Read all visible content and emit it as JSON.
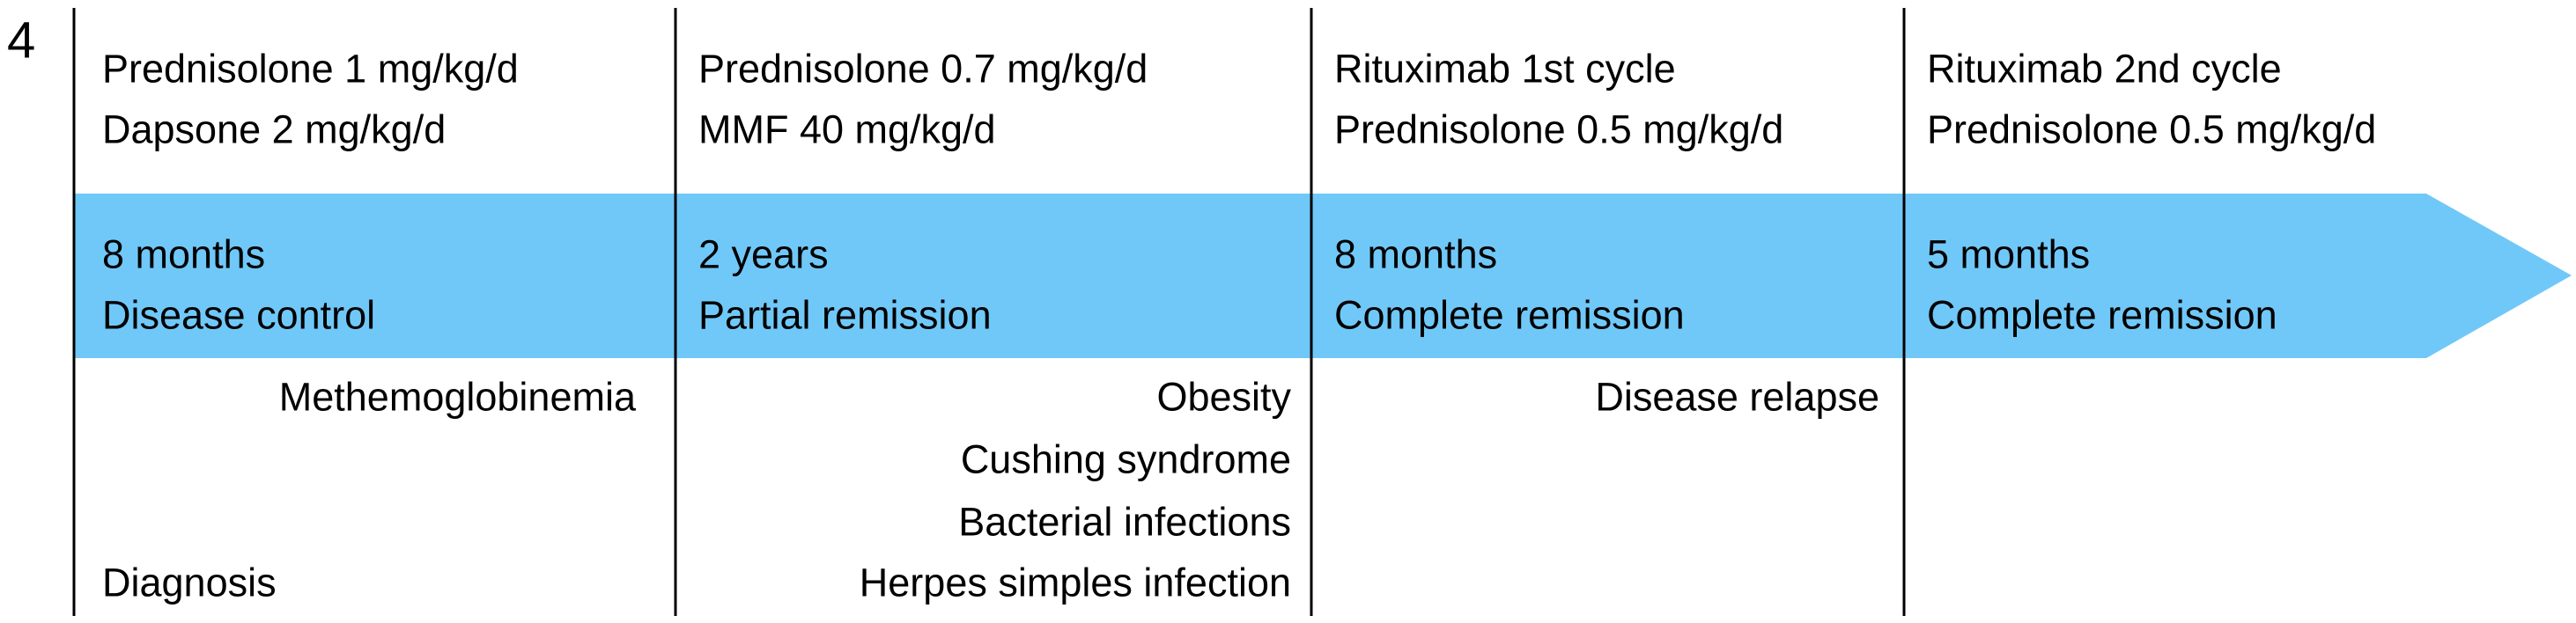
{
  "panel_label": "4",
  "start_label": "Diagnosis",
  "phases": [
    {
      "treatments": [
        "Prednisolone 1 mg/kg/d",
        "Dapsone 2 mg/kg/d"
      ],
      "duration": "8 months",
      "outcome": "Disease control",
      "events": [
        "Methemoglobinemia"
      ]
    },
    {
      "treatments": [
        "Prednisolone 0.7 mg/kg/d",
        "MMF 40 mg/kg/d"
      ],
      "duration": "2 years",
      "outcome": "Partial remission",
      "events": [
        "Obesity",
        "Cushing syndrome",
        "Bacterial infections",
        "Herpes simples infection"
      ]
    },
    {
      "treatments": [
        "Rituximab 1st cycle",
        "Prednisolone 0.5 mg/kg/d"
      ],
      "duration": "8 months",
      "outcome": "Complete remission",
      "events": [
        "Disease relapse"
      ]
    },
    {
      "treatments": [
        "Rituximab 2nd cycle",
        "Prednisolone 0.5 mg/kg/d"
      ],
      "duration": "5 months",
      "outcome": "Complete remission",
      "events": []
    }
  ]
}
